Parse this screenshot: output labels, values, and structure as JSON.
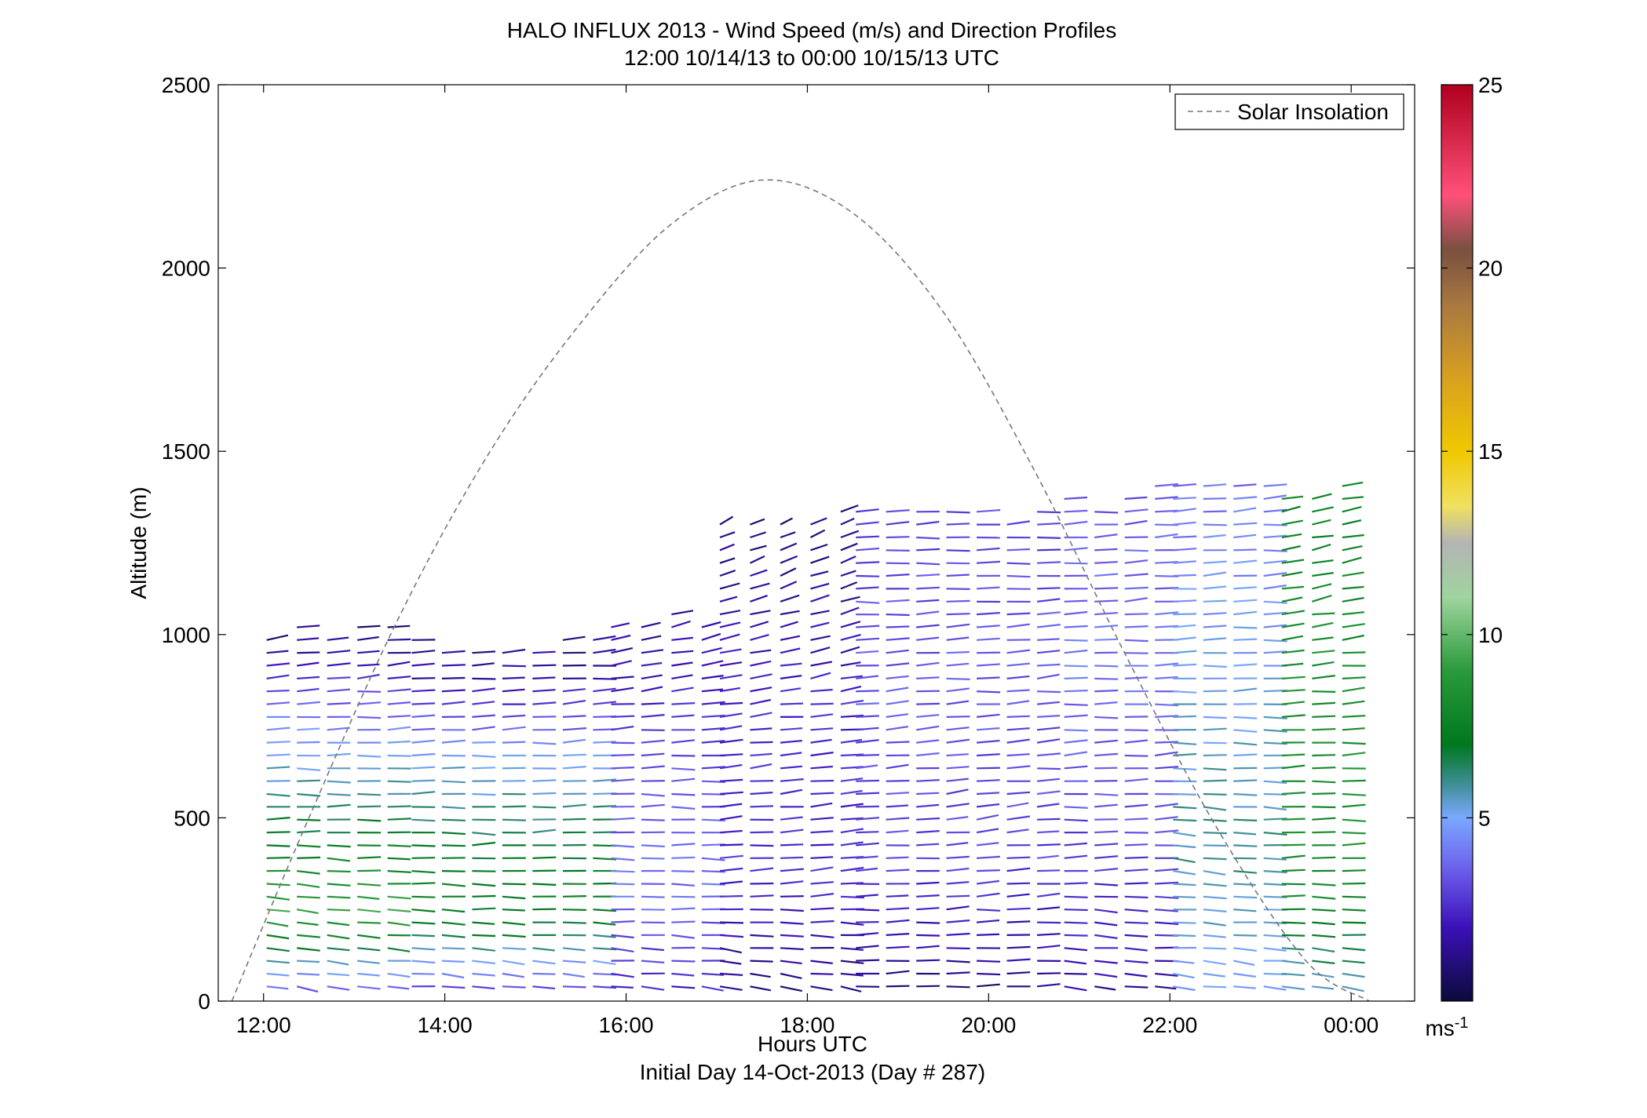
{
  "chart_data": {
    "type": "wind-barb-profile",
    "title_line1": "HALO INFLUX 2013 - Wind Speed (m/s) and Direction Profiles",
    "title_line2": "12:00 10/14/13 to 00:00 10/15/13  UTC",
    "xlabel": "Hours UTC",
    "xlabel2": "Initial Day 14-Oct-2013 (Day # 287)",
    "ylabel": "Altitude (m)",
    "xlim": [
      11.5,
      24.7
    ],
    "ylim": [
      0,
      2500
    ],
    "x_ticks": [
      12,
      14,
      16,
      18,
      20,
      22,
      24
    ],
    "x_tick_labels": [
      "12:00",
      "14:00",
      "16:00",
      "18:00",
      "20:00",
      "22:00",
      "00:00"
    ],
    "y_ticks": [
      0,
      500,
      1000,
      1500,
      2000,
      2500
    ],
    "y_tick_labels": [
      "0",
      "500",
      "1000",
      "1500",
      "2000",
      "2500"
    ],
    "legend": {
      "label": "Solar Insolation",
      "placement": "top-right",
      "line_style": "dashed",
      "color": "#777777"
    },
    "solar_insolation": {
      "hours": [
        11.65,
        12.5,
        13.5,
        14.5,
        15.5,
        16.5,
        17.5,
        18.5,
        19.5,
        20.5,
        21.5,
        22.5,
        23.5,
        24.2
      ],
      "altitude_m": [
        0,
        500,
        1050,
        1500,
        1850,
        2120,
        2240,
        2150,
        1880,
        1450,
        950,
        480,
        110,
        0
      ]
    },
    "colorbar": {
      "min": 0,
      "max": 25,
      "ticks": [
        5,
        10,
        15,
        20,
        25
      ],
      "tick_labels": [
        "5",
        "10",
        "15",
        "20",
        "25"
      ],
      "unit_label": "ms",
      "unit_exponent": "-1",
      "colormap": [
        [
          0,
          "#0b0b3a"
        ],
        [
          2,
          "#3b10b8"
        ],
        [
          3.5,
          "#6a5ae8"
        ],
        [
          5,
          "#7aa8ff"
        ],
        [
          6,
          "#3a8c8c"
        ],
        [
          7,
          "#00781e"
        ],
        [
          9,
          "#2a9a3a"
        ],
        [
          11,
          "#9ed49e"
        ],
        [
          12.5,
          "#b4b4b4"
        ],
        [
          13.5,
          "#f0e060"
        ],
        [
          15,
          "#f0c800"
        ],
        [
          17,
          "#d8a020"
        ],
        [
          19,
          "#a87840"
        ],
        [
          20.5,
          "#7a5040"
        ],
        [
          22,
          "#ff507a"
        ],
        [
          25,
          "#b0001e"
        ]
      ]
    },
    "wind_profiles": {
      "description_units": "altitude m, speed m/s, direction deg",
      "segments": [
        {
          "t0": 12.0,
          "t1": 13.6,
          "top": 1050,
          "layers": [
            [
              0,
              2.5,
              70
            ],
            [
              250,
              9.5,
              75
            ],
            [
              400,
              7.5,
              85
            ],
            [
              700,
              5.0,
              95
            ],
            [
              1000,
              1.0,
              110
            ]
          ]
        },
        {
          "t0": 13.6,
          "t1": 15.8,
          "top": 1000,
          "layers": [
            [
              0,
              2.5,
              75
            ],
            [
              200,
              7.0,
              80
            ],
            [
              350,
              7.5,
              90
            ],
            [
              650,
              5.0,
              95
            ],
            [
              900,
              1.5,
              100
            ]
          ]
        },
        {
          "t0": 15.8,
          "t1": 17.0,
          "top": 1050,
          "layers": [
            [
              0,
              2.2,
              75
            ],
            [
              300,
              4.0,
              85
            ],
            [
              700,
              3.0,
              95
            ],
            [
              1000,
              1.5,
              120
            ]
          ]
        },
        {
          "t0": 17.0,
          "t1": 18.5,
          "top": 1350,
          "layers": [
            [
              0,
              1.0,
              60
            ],
            [
              350,
              2.5,
              100
            ],
            [
              800,
              2.5,
              110
            ],
            [
              1300,
              1.0,
              140
            ]
          ]
        },
        {
          "t0": 18.5,
          "t1": 20.8,
          "top": 1350,
          "layers": [
            [
              0,
              1.0,
              90
            ],
            [
              400,
              3.0,
              105
            ],
            [
              900,
              3.5,
              100
            ],
            [
              1300,
              3.0,
              95
            ]
          ]
        },
        {
          "t0": 20.8,
          "t1": 22.0,
          "top": 1400,
          "layers": [
            [
              0,
              1.5,
              70
            ],
            [
              400,
              3.0,
              95
            ],
            [
              900,
              4.0,
              95
            ],
            [
              1350,
              3.5,
              100
            ]
          ]
        },
        {
          "t0": 22.0,
          "t1": 23.2,
          "top": 1420,
          "layers": [
            [
              0,
              4.5,
              70
            ],
            [
              400,
              6.0,
              80
            ],
            [
              900,
              5.0,
              95
            ],
            [
              1400,
              4.0,
              100
            ]
          ]
        },
        {
          "t0": 23.2,
          "t1": 24.1,
          "top": 1400,
          "layers": [
            [
              0,
              5.0,
              70
            ],
            [
              300,
              8.0,
              90
            ],
            [
              700,
              8.5,
              95
            ],
            [
              1100,
              8.0,
              115
            ],
            [
              1400,
              7.5,
              125
            ]
          ]
        }
      ]
    }
  }
}
